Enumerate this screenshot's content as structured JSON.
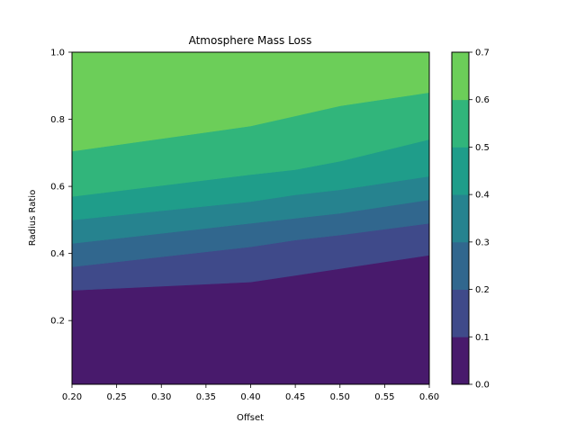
{
  "chart_data": {
    "type": "contourf",
    "title": "Atmosphere Mass Loss",
    "xlabel": "Offset",
    "ylabel": "Radius Ratio",
    "xlim": [
      0.2,
      0.6
    ],
    "ylim": [
      0.01,
      1.0
    ],
    "x_ticks": [
      0.2,
      0.25,
      0.3,
      0.35,
      0.4,
      0.45,
      0.5,
      0.55,
      0.6
    ],
    "x_tick_labels": [
      "0.20",
      "0.25",
      "0.30",
      "0.35",
      "0.40",
      "0.45",
      "0.50",
      "0.55",
      "0.60"
    ],
    "y_ticks": [
      0.2,
      0.4,
      0.6,
      0.8,
      1.0
    ],
    "y_tick_labels": [
      "0.2",
      "0.4",
      "0.6",
      "0.8",
      "1.0"
    ],
    "grid": false,
    "colorbar": {
      "levels": [
        0.0,
        0.1,
        0.2,
        0.3,
        0.4,
        0.5,
        0.6,
        0.7
      ],
      "tick_labels": [
        "0.0",
        "0.1",
        "0.2",
        "0.3",
        "0.4",
        "0.5",
        "0.6",
        "0.7"
      ],
      "colors": [
        "#481a6c",
        "#3f4a8a",
        "#31678e",
        "#26838f",
        "#1f9d8a",
        "#31b57b",
        "#6cce59",
        "#d1e21b"
      ]
    },
    "contour_x": [
      0.2,
      0.4,
      0.45,
      0.5,
      0.6
    ],
    "contour_lines": [
      {
        "level": 0.1,
        "y": [
          0.29,
          0.315,
          0.335,
          0.355,
          0.395
        ]
      },
      {
        "level": 0.2,
        "y": [
          0.36,
          0.42,
          0.44,
          0.455,
          0.49
        ]
      },
      {
        "level": 0.3,
        "y": [
          0.43,
          0.49,
          0.505,
          0.52,
          0.56
        ]
      },
      {
        "level": 0.4,
        "y": [
          0.5,
          0.555,
          0.575,
          0.59,
          0.63
        ]
      },
      {
        "level": 0.5,
        "y": [
          0.57,
          0.635,
          0.65,
          0.675,
          0.74
        ]
      },
      {
        "level": 0.6,
        "y": [
          0.705,
          0.78,
          0.81,
          0.84,
          0.88
        ]
      }
    ]
  }
}
